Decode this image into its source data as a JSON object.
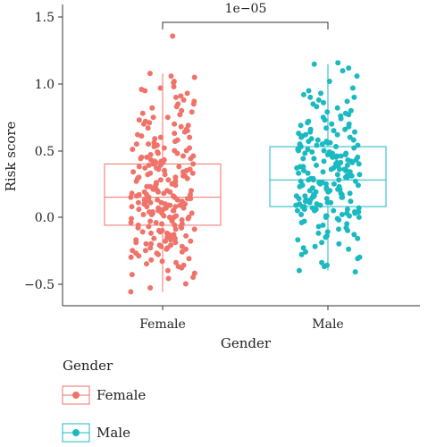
{
  "chart_data": {
    "type": "box",
    "xlabel": "Gender",
    "ylabel": "Risk score",
    "ylim": [
      -0.6,
      1.55
    ],
    "yticks": [
      "1.5",
      "1.0",
      "0.5",
      "0.0",
      "−0.5"
    ],
    "ytick_values": [
      1.5,
      1.0,
      0.5,
      0.0,
      -0.5
    ],
    "categories": [
      "Female",
      "Male"
    ],
    "significance": {
      "label": "1e−05",
      "between": [
        "Female",
        "Male"
      ]
    },
    "legend": {
      "title": "Gender",
      "placement": "bottom-left",
      "entries": [
        "Female",
        "Male"
      ]
    },
    "series": [
      {
        "name": "Female",
        "color": "#F0736A",
        "box": {
          "min": -0.56,
          "q1": -0.06,
          "median": 0.15,
          "q3": 0.4,
          "max": 1.08
        },
        "points": [
          1.36,
          1.08,
          1.06,
          1.05,
          1.02,
          0.98,
          0.96,
          0.93,
          0.9,
          0.88,
          0.85,
          0.82,
          0.8,
          0.78,
          0.75,
          0.72,
          0.7,
          0.68,
          0.66,
          0.64,
          0.62,
          0.6,
          0.58,
          0.56,
          0.55,
          0.53,
          0.52,
          0.5,
          0.49,
          0.48,
          0.46,
          0.45,
          0.44,
          0.43,
          0.42,
          0.41,
          0.4,
          0.39,
          0.38,
          0.37,
          0.36,
          0.35,
          0.34,
          0.33,
          0.32,
          0.31,
          0.3,
          0.29,
          0.28,
          0.27,
          0.26,
          0.25,
          0.24,
          0.23,
          0.22,
          0.21,
          0.2,
          0.2,
          0.19,
          0.18,
          0.17,
          0.17,
          0.16,
          0.15,
          0.15,
          0.14,
          0.13,
          0.13,
          0.12,
          0.11,
          0.1,
          0.1,
          0.09,
          0.08,
          0.08,
          0.07,
          0.06,
          0.06,
          0.05,
          0.04,
          0.03,
          0.03,
          0.02,
          0.01,
          0.0,
          0.0,
          -0.01,
          -0.02,
          -0.03,
          -0.04,
          -0.05,
          -0.06,
          -0.07,
          -0.08,
          -0.09,
          -0.1,
          -0.11,
          -0.12,
          -0.13,
          -0.14,
          -0.15,
          -0.16,
          -0.17,
          -0.18,
          -0.19,
          -0.2,
          -0.21,
          -0.22,
          -0.23,
          -0.24,
          -0.25,
          -0.26,
          -0.27,
          -0.28,
          -0.3,
          -0.32,
          -0.34,
          -0.36,
          -0.38,
          -0.42,
          -0.46,
          -0.5,
          -0.53,
          -0.56,
          0.45,
          0.35,
          0.25,
          0.15,
          0.05,
          -0.05,
          -0.15,
          0.6,
          0.7,
          0.3,
          0.2,
          0.1,
          0.0,
          -0.1,
          -0.2,
          0.5,
          0.4,
          0.22,
          0.12,
          0.02,
          -0.08,
          -0.18,
          0.33,
          0.27,
          0.18,
          0.07,
          -0.02,
          -0.12,
          -0.22,
          0.42,
          0.38,
          0.14,
          0.04,
          -0.04,
          -0.14,
          0.24,
          0.16,
          0.06,
          -0.06,
          0.11,
          0.09,
          0.01,
          -0.09,
          0.21,
          0.19,
          0.28,
          0.36,
          0.47,
          0.55,
          0.65,
          0.75,
          0.85,
          0.95,
          -0.35,
          -0.4,
          -0.45,
          0.08,
          0.13,
          0.23,
          0.31,
          0.39,
          0.43,
          0.48,
          0.52,
          0.57,
          0.63,
          0.67,
          0.73,
          0.77,
          -0.25,
          -0.29,
          -0.33,
          -0.11,
          -0.16,
          -0.19,
          -0.21,
          -0.23,
          0.03,
          0.05,
          0.07,
          0.09,
          0.11,
          0.14,
          0.17,
          0.19,
          0.26,
          0.29,
          0.32,
          0.34,
          0.37,
          0.41,
          0.44,
          0.46,
          0.51,
          0.54,
          0.59,
          0.61,
          0.69,
          0.71,
          0.79,
          0.83,
          0.87,
          0.91,
          0.97,
          1.01,
          -0.01,
          -0.03,
          -0.07,
          -0.13,
          -0.17,
          -0.24,
          -0.27,
          -0.31,
          -0.37,
          -0.43
        ]
      },
      {
        "name": "Male",
        "color": "#1BB9C0",
        "box": {
          "min": -0.4,
          "q1": 0.08,
          "median": 0.28,
          "q3": 0.53,
          "max": 1.15
        },
        "points": [
          1.16,
          1.15,
          1.12,
          1.1,
          1.06,
          1.02,
          0.97,
          0.95,
          0.92,
          0.9,
          0.9,
          0.87,
          0.85,
          0.83,
          0.8,
          0.78,
          0.76,
          0.74,
          0.72,
          0.7,
          0.68,
          0.66,
          0.64,
          0.62,
          0.6,
          0.59,
          0.58,
          0.57,
          0.56,
          0.55,
          0.54,
          0.53,
          0.52,
          0.51,
          0.5,
          0.49,
          0.48,
          0.47,
          0.46,
          0.45,
          0.44,
          0.43,
          0.42,
          0.41,
          0.4,
          0.39,
          0.38,
          0.37,
          0.36,
          0.35,
          0.34,
          0.33,
          0.32,
          0.31,
          0.3,
          0.29,
          0.28,
          0.28,
          0.27,
          0.26,
          0.25,
          0.24,
          0.23,
          0.22,
          0.21,
          0.2,
          0.19,
          0.18,
          0.17,
          0.16,
          0.15,
          0.14,
          0.13,
          0.12,
          0.11,
          0.1,
          0.09,
          0.08,
          0.07,
          0.06,
          0.05,
          0.04,
          0.03,
          0.02,
          0.01,
          0.0,
          -0.01,
          -0.02,
          -0.03,
          -0.05,
          -0.07,
          -0.09,
          -0.11,
          -0.13,
          -0.15,
          -0.17,
          -0.2,
          -0.23,
          -0.26,
          -0.3,
          -0.34,
          -0.37,
          -0.4,
          -0.41,
          0.5,
          0.45,
          0.4,
          0.35,
          0.3,
          0.25,
          0.2,
          0.15,
          0.1,
          0.05,
          0.6,
          0.55,
          0.42,
          0.32,
          0.22,
          0.12,
          0.02,
          0.65,
          0.48,
          0.38,
          0.27,
          0.17,
          0.07,
          -0.04,
          0.71,
          0.61,
          0.44,
          0.34,
          0.24,
          0.14,
          0.04,
          0.52,
          0.46,
          0.36,
          0.26,
          0.16,
          0.06,
          0.57,
          0.41,
          0.31,
          0.21,
          0.11,
          0.01,
          0.66,
          0.47,
          0.37,
          0.29,
          0.19,
          0.09,
          -0.06,
          0.75,
          0.69,
          0.63,
          0.58,
          0.53,
          0.49,
          0.43,
          0.39,
          0.33,
          0.23,
          0.13,
          0.03,
          -0.08,
          -0.12,
          -0.16,
          -0.22,
          -0.28,
          0.88,
          0.82,
          0.79,
          0.73,
          0.67,
          0.62,
          0.56,
          0.51,
          0.46,
          0.41,
          0.36,
          0.31,
          0.26,
          0.21,
          0.16,
          0.11,
          0.06,
          0.01,
          -0.1,
          -0.14,
          -0.19,
          -0.24,
          -0.31,
          -0.36,
          0.93,
          0.86,
          0.77,
          0.7,
          0.64,
          0.54,
          0.45,
          0.35,
          0.25,
          0.15,
          0.05,
          0.0,
          0.08,
          0.18,
          0.28,
          0.38,
          0.48
        ]
      }
    ]
  }
}
